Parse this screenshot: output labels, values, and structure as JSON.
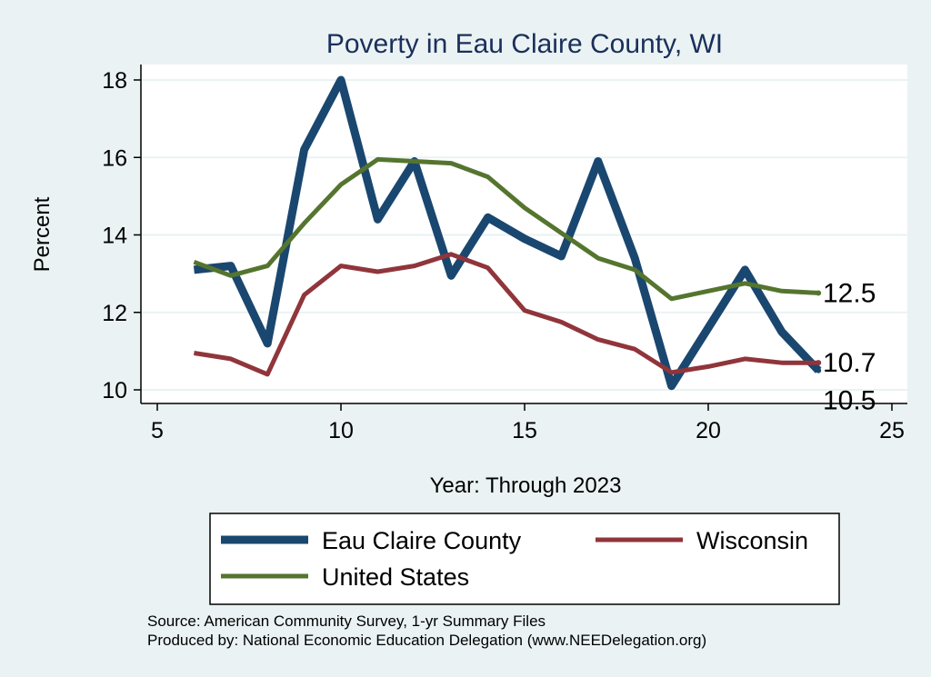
{
  "chart_data": {
    "type": "line",
    "title": "Poverty in Eau Claire County, WI",
    "xlabel": "Year: Through 2023",
    "ylabel": "Percent",
    "xlim": [
      5,
      25
    ],
    "ylim": [
      10,
      18
    ],
    "xticks": [
      5,
      10,
      15,
      20,
      25
    ],
    "yticks": [
      10,
      12,
      14,
      16,
      18
    ],
    "grid": true,
    "legend_position": "bottom",
    "x": [
      6,
      7,
      8,
      9,
      10,
      11,
      12,
      13,
      14,
      15,
      16,
      17,
      18,
      19,
      20,
      21,
      22,
      23
    ],
    "series": [
      {
        "name": "Eau Claire County",
        "color": "#1a476f",
        "values": [
          13.1,
          13.2,
          11.2,
          16.2,
          18.0,
          14.4,
          15.9,
          12.95,
          14.45,
          13.9,
          13.45,
          15.9,
          13.4,
          10.1,
          11.6,
          13.1,
          11.5,
          10.5
        ],
        "end_label": "10.5"
      },
      {
        "name": "Wisconsin",
        "color": "#90353b",
        "values": [
          10.95,
          10.8,
          10.4,
          12.45,
          13.2,
          13.05,
          13.2,
          13.5,
          13.15,
          12.05,
          11.75,
          11.3,
          11.05,
          10.45,
          10.6,
          10.8,
          10.7,
          10.7
        ],
        "end_label": "10.7"
      },
      {
        "name": "United States",
        "color": "#55752f",
        "values": [
          13.3,
          12.95,
          13.2,
          14.3,
          15.3,
          15.95,
          15.9,
          15.85,
          15.5,
          14.7,
          14.05,
          13.4,
          13.1,
          12.35,
          12.55,
          12.75,
          12.55,
          12.5
        ],
        "end_label": "12.5"
      }
    ],
    "notes": [
      "Source: American Community Survey, 1-yr Summary Files",
      "Produced by: National Economic Education Delegation (www.NEEDelegation.org)"
    ]
  }
}
